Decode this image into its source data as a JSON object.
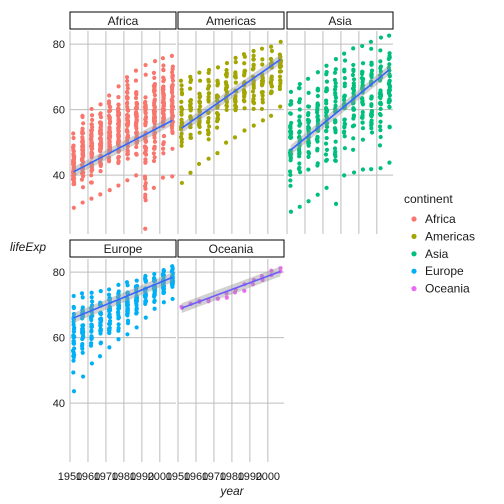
{
  "chart_data": {
    "type": "scatter",
    "faceted_by": "continent",
    "xlabel": "year",
    "ylabel": "lifeExp",
    "x_ticks": [
      "1950",
      "1960",
      "1970",
      "1980",
      "1990",
      "2000"
    ],
    "x_tick_values": [
      1950,
      1960,
      1970,
      1980,
      1990,
      2000
    ],
    "y_ticks": [
      "40",
      "60",
      "80"
    ],
    "y_tick_values": [
      40,
      60,
      80
    ],
    "xlim": [
      1950,
      2009
    ],
    "ylim": [
      22,
      84
    ],
    "years": [
      1952,
      1957,
      1962,
      1967,
      1972,
      1977,
      1982,
      1987,
      1992,
      1997,
      2002,
      2007
    ],
    "grid": true,
    "legend": {
      "title": "continent",
      "position": "right",
      "entries": [
        "Africa",
        "Americas",
        "Asia",
        "Europe",
        "Oceania"
      ]
    },
    "panels": [
      {
        "name": "Africa",
        "color": "#F8766D",
        "trend": [
          41.0,
          56.7
        ],
        "ranges": [
          [
            30.0,
            52.7
          ],
          [
            31.6,
            58.1
          ],
          [
            32.8,
            60.2
          ],
          [
            34.1,
            61.6
          ],
          [
            35.4,
            64.3
          ],
          [
            36.8,
            67.1
          ],
          [
            38.4,
            69.9
          ],
          [
            39.9,
            71.9
          ],
          [
            23.6,
            73.6
          ],
          [
            36.1,
            74.8
          ],
          [
            39.2,
            75.7
          ],
          [
            39.6,
            76.4
          ]
        ]
      },
      {
        "name": "Americas",
        "color": "#A3A500",
        "trend": [
          54.3,
          75.3
        ],
        "ranges": [
          [
            37.6,
            68.8
          ],
          [
            40.7,
            70.0
          ],
          [
            43.4,
            71.3
          ],
          [
            45.0,
            72.1
          ],
          [
            46.7,
            72.9
          ],
          [
            49.9,
            74.2
          ],
          [
            51.5,
            75.8
          ],
          [
            53.6,
            76.9
          ],
          [
            55.1,
            77.9
          ],
          [
            56.7,
            78.6
          ],
          [
            58.1,
            79.2
          ],
          [
            60.9,
            80.7
          ]
        ]
      },
      {
        "name": "Asia",
        "color": "#00BF7D",
        "trend": [
          47.6,
          72.2
        ],
        "ranges": [
          [
            28.8,
            65.4
          ],
          [
            30.3,
            67.8
          ],
          [
            32.0,
            69.4
          ],
          [
            34.0,
            71.4
          ],
          [
            36.1,
            73.4
          ],
          [
            31.2,
            75.4
          ],
          [
            39.9,
            77.1
          ],
          [
            40.8,
            78.7
          ],
          [
            41.7,
            79.4
          ],
          [
            41.8,
            80.7
          ],
          [
            42.1,
            82.0
          ],
          [
            43.8,
            82.6
          ]
        ]
      },
      {
        "name": "Europe",
        "color": "#00B0F6",
        "trend": [
          66.0,
          78.4
        ],
        "ranges": [
          [
            43.6,
            72.7
          ],
          [
            48.1,
            73.5
          ],
          [
            52.1,
            73.7
          ],
          [
            54.3,
            74.2
          ],
          [
            57.0,
            74.7
          ],
          [
            59.5,
            76.1
          ],
          [
            61.0,
            76.9
          ],
          [
            63.1,
            77.4
          ],
          [
            66.1,
            78.8
          ],
          [
            68.8,
            79.4
          ],
          [
            70.8,
            80.6
          ],
          [
            71.8,
            81.8
          ]
        ]
      },
      {
        "name": "Oceania",
        "color": "#E76BF3",
        "trend": [
          69.0,
          80.2
        ],
        "ranges": [
          [
            69.1,
            69.4
          ],
          [
            70.3,
            70.3
          ],
          [
            70.9,
            71.2
          ],
          [
            71.1,
            71.5
          ],
          [
            71.9,
            71.9
          ],
          [
            72.2,
            73.5
          ],
          [
            73.8,
            74.7
          ],
          [
            74.3,
            76.3
          ],
          [
            76.3,
            77.6
          ],
          [
            77.6,
            78.8
          ],
          [
            79.1,
            80.4
          ],
          [
            80.2,
            81.2
          ]
        ]
      }
    ]
  }
}
